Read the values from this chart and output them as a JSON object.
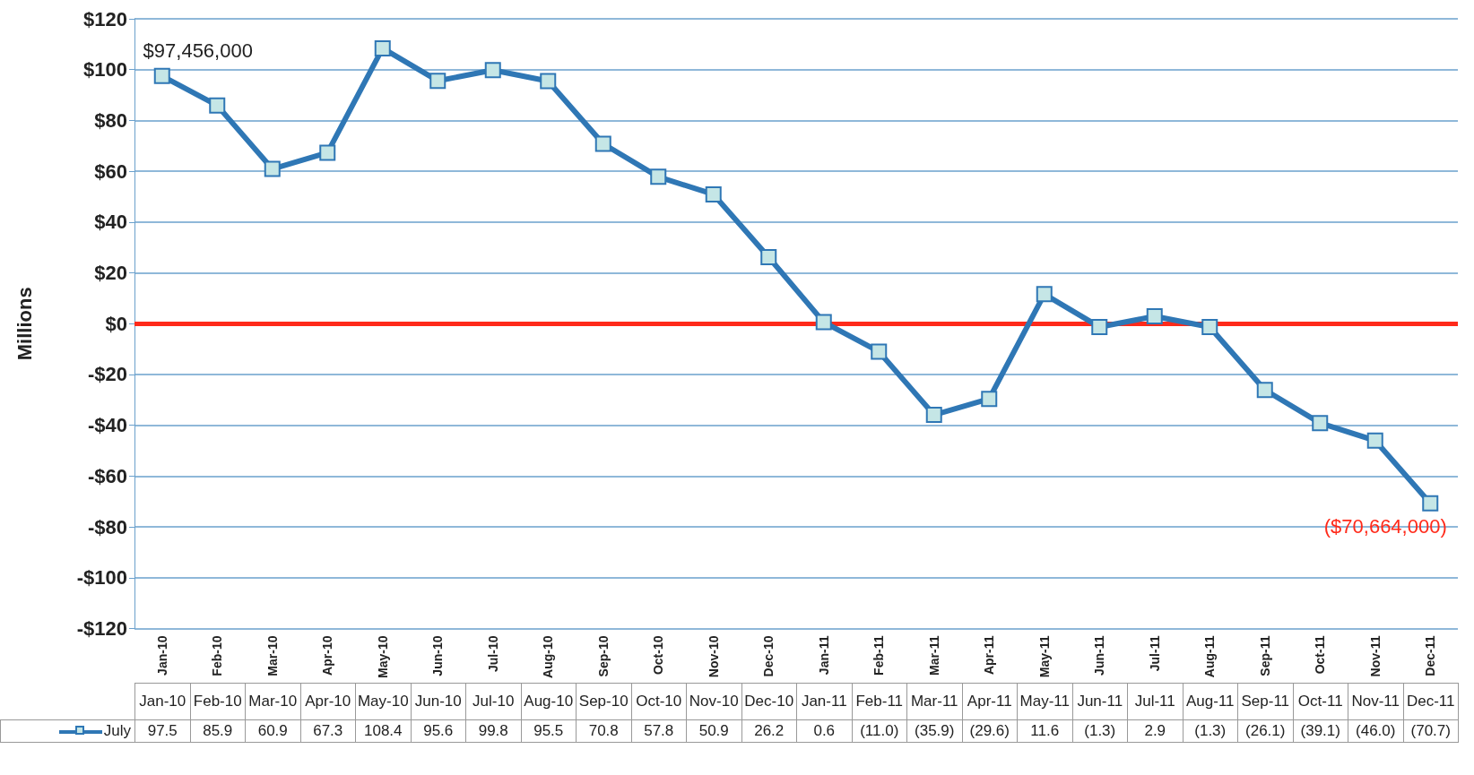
{
  "chart_data": {
    "type": "line",
    "ylabel": "Millions",
    "categories": [
      "Jan-10",
      "Feb-10",
      "Mar-10",
      "Apr-10",
      "May-10",
      "Jun-10",
      "Jul-10",
      "Aug-10",
      "Sep-10",
      "Oct-10",
      "Nov-10",
      "Dec-10",
      "Jan-11",
      "Feb-11",
      "Mar-11",
      "Apr-11",
      "May-11",
      "Jun-11",
      "Jul-11",
      "Aug-11",
      "Sep-11",
      "Oct-11",
      "Nov-11",
      "Dec-11"
    ],
    "series": [
      {
        "name": "July",
        "color": "#2f77b5",
        "values": [
          97.5,
          85.9,
          60.9,
          67.3,
          108.4,
          95.6,
          99.8,
          95.5,
          70.8,
          57.8,
          50.9,
          26.2,
          0.6,
          -11.0,
          -35.9,
          -29.6,
          11.6,
          -1.3,
          2.9,
          -1.3,
          -26.1,
          -39.1,
          -46.0,
          -70.7
        ],
        "value_labels": [
          "97.5",
          "85.9",
          "60.9",
          "67.3",
          "108.4",
          "95.6",
          "99.8",
          "95.5",
          "70.8",
          "57.8",
          "50.9",
          "26.2",
          "0.6",
          "(11.0)",
          "(35.9)",
          "(29.6)",
          "11.6",
          "(1.3)",
          "2.9",
          "(1.3)",
          "(26.1)",
          "(39.1)",
          "(46.0)",
          "(70.7)"
        ]
      }
    ],
    "ylim": [
      -120,
      120
    ],
    "yticks": [
      {
        "value": -120,
        "label": "-$120"
      },
      {
        "value": -100,
        "label": "-$100"
      },
      {
        "value": -80,
        "label": "-$80"
      },
      {
        "value": -60,
        "label": "-$60"
      },
      {
        "value": -40,
        "label": "-$40"
      },
      {
        "value": -20,
        "label": "-$20"
      },
      {
        "value": 0,
        "label": "$0"
      },
      {
        "value": 20,
        "label": "$20"
      },
      {
        "value": 40,
        "label": "$40"
      },
      {
        "value": 60,
        "label": "$60"
      },
      {
        "value": 80,
        "label": "$80"
      },
      {
        "value": 100,
        "label": "$100"
      },
      {
        "value": 120,
        "label": "$120"
      }
    ],
    "ref_lines": [
      {
        "axis": "y",
        "value": 0,
        "color": "#ff2a1a"
      }
    ],
    "annotations": [
      {
        "text": "$97,456,000",
        "x": "Jan-10",
        "y": 97.456
      },
      {
        "text": "($70,664,000)",
        "x": "Dec-11",
        "y": -70.664
      }
    ],
    "grid": "y",
    "legend": "bottom left",
    "marker": "square",
    "line_style": "solid"
  }
}
